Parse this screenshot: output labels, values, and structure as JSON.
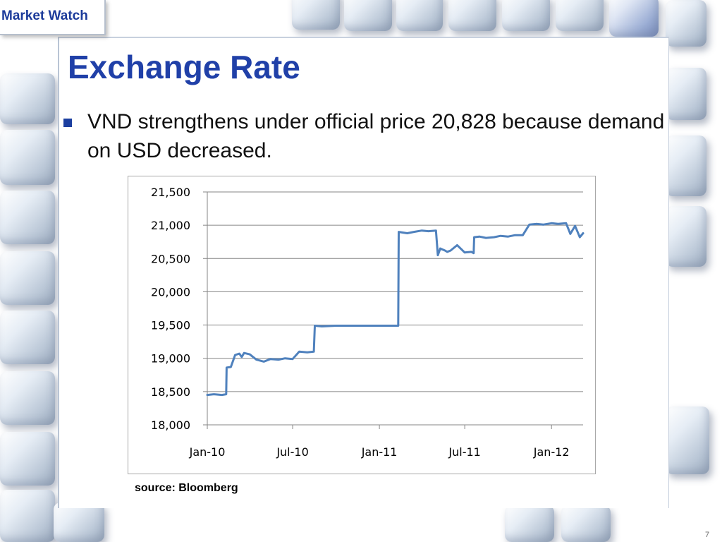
{
  "header": {
    "section_tag": "Market Watch",
    "title": "Exchange Rate"
  },
  "bullet": {
    "text": "VND strengthens under official price 20,828 because demand on USD decreased."
  },
  "source_note": "source: Bloomberg",
  "page_number": "7",
  "colors": {
    "title": "#2040a8",
    "series_line": "#4f81bd",
    "tag_text": "#1b3a9a"
  },
  "chart_data": {
    "type": "line",
    "title": "",
    "xlabel": "",
    "ylabel": "",
    "ylim": [
      18000,
      21500
    ],
    "yticks": [
      18000,
      18500,
      19000,
      19500,
      20000,
      20500,
      21000,
      21500
    ],
    "ytick_labels": [
      "18,000",
      "18,500",
      "19,000",
      "19,500",
      "20,000",
      "20,500",
      "21,000",
      "21,500"
    ],
    "xticks": [
      "Jan-10",
      "Jul-10",
      "Jan-11",
      "Jul-11",
      "Jan-12"
    ],
    "xlim": [
      "2010-01-01",
      "2012-03-08"
    ],
    "grid": "horizontal",
    "legend": "none",
    "series": [
      {
        "x": [
          "2010-01-01",
          "2010-01-15",
          "2010-02-01",
          "2010-02-10",
          "2010-02-11",
          "2010-02-20",
          "2010-03-01",
          "2010-03-10",
          "2010-03-15",
          "2010-03-20",
          "2010-04-01",
          "2010-04-15",
          "2010-05-01",
          "2010-05-15",
          "2010-06-01",
          "2010-06-15",
          "2010-07-01",
          "2010-07-15",
          "2010-08-01",
          "2010-08-15",
          "2010-08-17",
          "2010-09-01",
          "2010-10-01",
          "2010-11-01",
          "2010-12-01",
          "2011-01-01",
          "2011-01-15",
          "2011-02-01",
          "2011-02-10",
          "2011-02-11",
          "2011-03-01",
          "2011-03-15",
          "2011-04-01",
          "2011-04-15",
          "2011-05-01",
          "2011-05-05",
          "2011-05-10",
          "2011-05-20",
          "2011-05-25",
          "2011-06-01",
          "2011-06-15",
          "2011-07-01",
          "2011-07-15",
          "2011-07-20",
          "2011-07-21",
          "2011-08-01",
          "2011-08-15",
          "2011-09-01",
          "2011-09-15",
          "2011-10-01",
          "2011-10-15",
          "2011-11-01",
          "2011-11-15",
          "2011-12-01",
          "2011-12-15",
          "2012-01-01",
          "2012-01-15",
          "2012-02-01",
          "2012-02-10",
          "2012-02-20",
          "2012-03-01",
          "2012-03-08"
        ],
        "values": [
          18450,
          18460,
          18450,
          18460,
          18860,
          18870,
          19050,
          19070,
          19020,
          19080,
          19060,
          18980,
          18950,
          18990,
          18980,
          19000,
          18990,
          19100,
          19090,
          19100,
          19490,
          19480,
          19490,
          19490,
          19490,
          19490,
          19490,
          19490,
          19490,
          20900,
          20880,
          20900,
          20920,
          20910,
          20920,
          20550,
          20650,
          20620,
          20600,
          20620,
          20700,
          20590,
          20600,
          20580,
          20820,
          20830,
          20810,
          20820,
          20840,
          20830,
          20850,
          20850,
          21010,
          21020,
          21010,
          21030,
          21020,
          21030,
          20870,
          20990,
          20820,
          20880
        ]
      }
    ]
  }
}
